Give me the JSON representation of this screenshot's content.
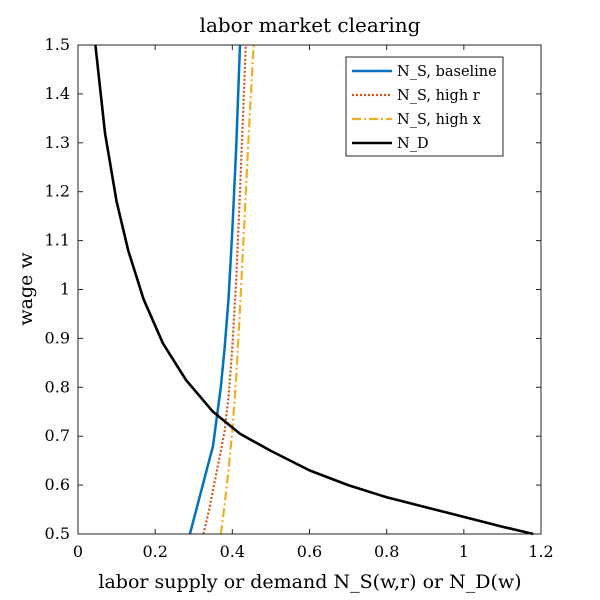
{
  "chart_data": {
    "type": "line",
    "title": "labor market clearing",
    "xlabel": "labor supply or demand N_S(w,r) or N_D(w)",
    "ylabel": "wage w",
    "xlim": [
      0,
      1.2
    ],
    "ylim": [
      0.5,
      1.5
    ],
    "xticks": [
      "0",
      "0.2",
      "0.4",
      "0.6",
      "0.8",
      "1",
      "1.2"
    ],
    "yticks": [
      "0.5",
      "0.6",
      "0.7",
      "0.8",
      "0.9",
      "1",
      "1.1",
      "1.2",
      "1.3",
      "1.4",
      "1.5"
    ],
    "grid": false,
    "legend_position": "top-right",
    "series": [
      {
        "name": "N_S, baseline",
        "color": "#0072BD",
        "style": "solid",
        "x": [
          0.29,
          0.31,
          0.33,
          0.35,
          0.36,
          0.37,
          0.38,
          0.39,
          0.4,
          0.41,
          0.42
        ],
        "y": [
          0.5,
          0.56,
          0.62,
          0.68,
          0.74,
          0.8,
          0.88,
          0.98,
          1.12,
          1.29,
          1.5
        ]
      },
      {
        "name": "N_S, high r",
        "color": "#D95319",
        "style": "dotted",
        "x": [
          0.325,
          0.34,
          0.355,
          0.37,
          0.38,
          0.39,
          0.4,
          0.41,
          0.42,
          0.435
        ],
        "y": [
          0.5,
          0.55,
          0.61,
          0.67,
          0.71,
          0.78,
          0.88,
          1.02,
          1.2,
          1.5
        ]
      },
      {
        "name": "N_S, high x",
        "color": "#EDB120",
        "style": "dashdot",
        "x": [
          0.37,
          0.38,
          0.39,
          0.4,
          0.41,
          0.42,
          0.43,
          0.44,
          0.455
        ],
        "y": [
          0.5,
          0.56,
          0.63,
          0.71,
          0.82,
          0.96,
          1.12,
          1.28,
          1.5
        ]
      },
      {
        "name": "N_D",
        "color": "#000000",
        "style": "solid",
        "x": [
          0.045,
          0.07,
          0.1,
          0.13,
          0.17,
          0.22,
          0.28,
          0.35,
          0.42,
          0.5,
          0.6,
          0.7,
          0.8,
          0.9,
          1.0,
          1.1,
          1.18
        ],
        "y": [
          1.5,
          1.32,
          1.18,
          1.08,
          0.98,
          0.89,
          0.815,
          0.75,
          0.705,
          0.67,
          0.63,
          0.6,
          0.575,
          0.555,
          0.535,
          0.515,
          0.5
        ]
      }
    ]
  }
}
